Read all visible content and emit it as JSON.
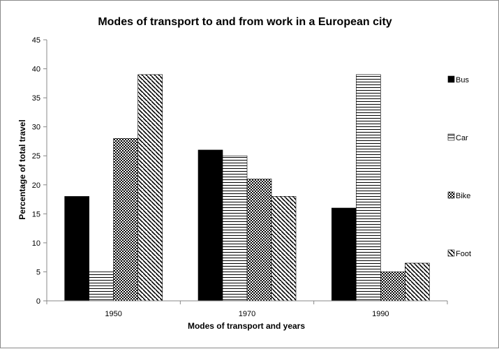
{
  "chart_data": {
    "type": "bar",
    "title": "Modes of transport to and from work in a European city",
    "xlabel": "Modes of transport and years",
    "ylabel": "Percentage of total travel",
    "categories": [
      "1950",
      "1970",
      "1990"
    ],
    "ylim": [
      0,
      45
    ],
    "yticks": [
      "0",
      "5",
      "10",
      "15",
      "20",
      "25",
      "30",
      "35",
      "40",
      "45"
    ],
    "grid": false,
    "legend_position": "right",
    "series": [
      {
        "name": "Bus",
        "pattern": "solid",
        "values": [
          18,
          26,
          16
        ]
      },
      {
        "name": "Car",
        "pattern": "horizontal",
        "values": [
          5,
          25,
          39
        ]
      },
      {
        "name": "Bike",
        "pattern": "checker",
        "values": [
          28,
          21,
          5
        ]
      },
      {
        "name": "Foot",
        "pattern": "diagonal",
        "values": [
          39,
          18,
          6.5
        ]
      }
    ]
  }
}
